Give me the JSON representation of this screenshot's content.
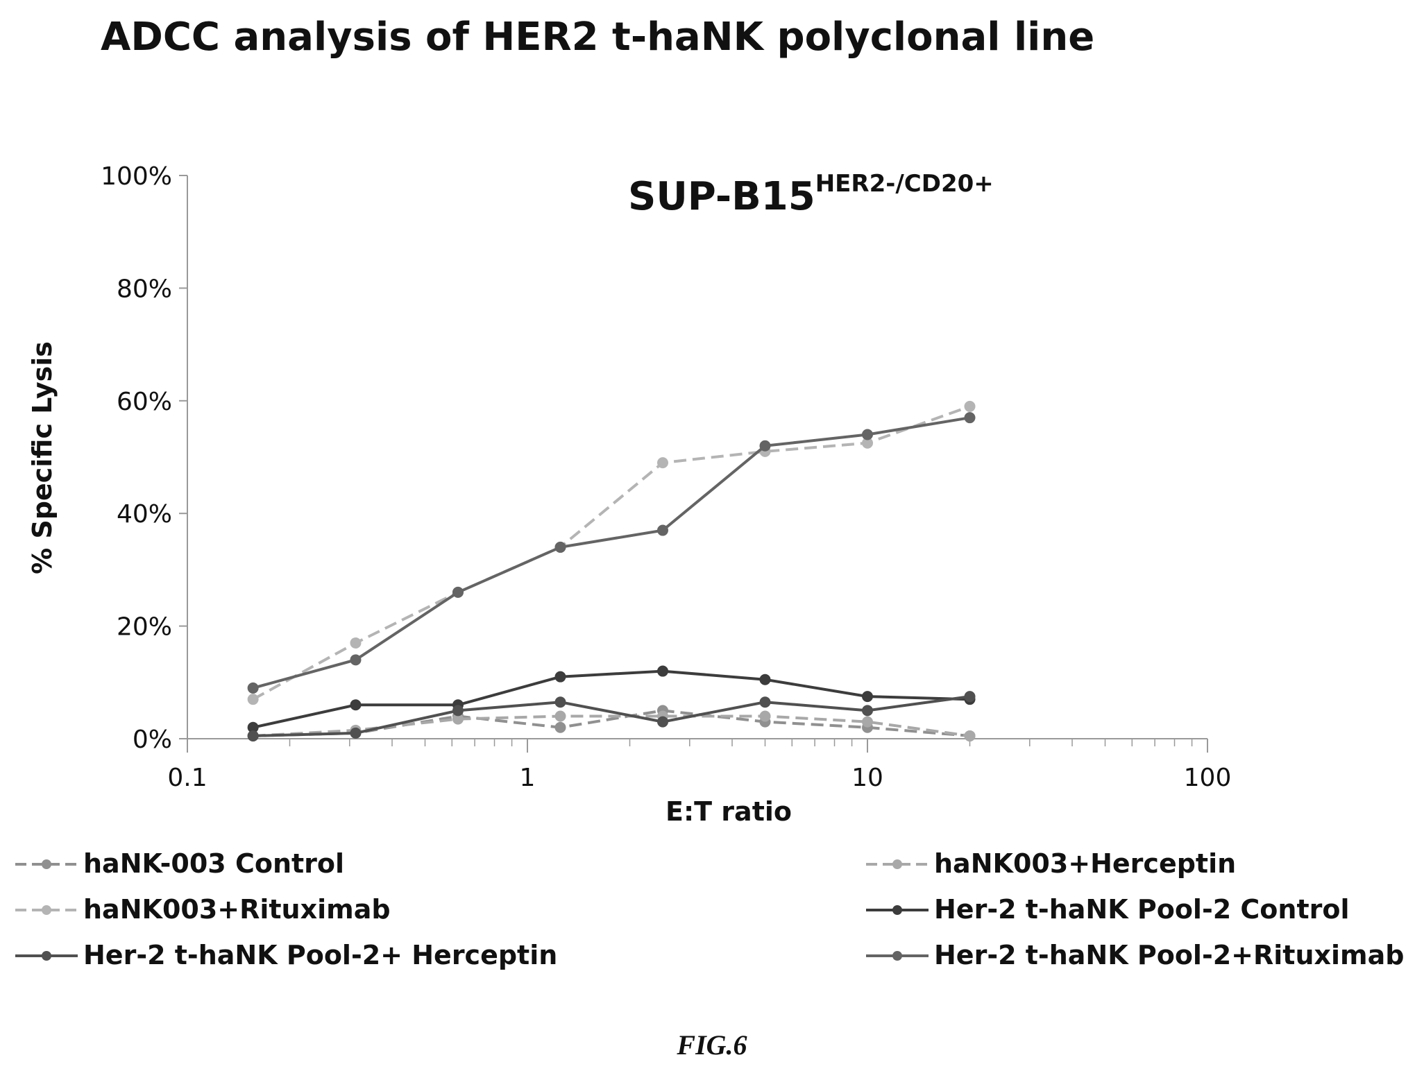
{
  "page": {
    "title": "ADCC analysis of HER2 t-haNK polyclonal line",
    "caption": "FIG.6"
  },
  "chart_data": {
    "type": "line",
    "title": "SUP-B15",
    "title_superscript": "HER2-/CD20+",
    "xlabel": "E:T ratio",
    "ylabel": "% Specific Lysis",
    "x_scale": "log",
    "xlim": [
      0.1,
      100
    ],
    "ylim": [
      0,
      100
    ],
    "x_ticks": [
      {
        "value": 0.1,
        "label": "0.1"
      },
      {
        "value": 1,
        "label": "1"
      },
      {
        "value": 10,
        "label": "10"
      },
      {
        "value": 100,
        "label": "100"
      }
    ],
    "y_ticks": [
      {
        "value": 0,
        "label": "0%"
      },
      {
        "value": 20,
        "label": "20%"
      },
      {
        "value": 40,
        "label": "40%"
      },
      {
        "value": 60,
        "label": "60%"
      },
      {
        "value": 80,
        "label": "80%"
      },
      {
        "value": 100,
        "label": "100%"
      }
    ],
    "grid": false,
    "legend_position": "bottom",
    "x": [
      0.156,
      0.3125,
      0.625,
      1.25,
      2.5,
      5,
      10,
      20
    ],
    "series": [
      {
        "name": "haNK-003 Control",
        "color": "#909090",
        "dashed": true,
        "values": [
          0.5,
          1,
          4,
          2,
          5,
          3,
          2,
          0.5
        ]
      },
      {
        "name": "haNK003+Herceptin",
        "color": "#a8a8a8",
        "dashed": true,
        "values": [
          0.5,
          1.5,
          3.5,
          4,
          4,
          4,
          3,
          0.5
        ]
      },
      {
        "name": "haNK003+Rituximab",
        "color": "#b4b4b4",
        "dashed": true,
        "values": [
          7,
          17,
          26,
          34,
          49,
          51,
          52.5,
          59
        ]
      },
      {
        "name": "Her-2 t-haNK Pool-2 Control",
        "color": "#3c3c3c",
        "dashed": false,
        "values": [
          2,
          6,
          6,
          11,
          12,
          10.5,
          7.5,
          7
        ]
      },
      {
        "name": "Her-2 t-haNK Pool-2+ Herceptin",
        "color": "#505050",
        "dashed": false,
        "values": [
          0.5,
          1,
          5,
          6.5,
          3,
          6.5,
          5,
          7.5
        ]
      },
      {
        "name": "Her-2 t-haNK Pool-2+Rituximab",
        "color": "#646464",
        "dashed": false,
        "values": [
          9,
          14,
          26,
          34,
          37,
          52,
          54,
          57
        ]
      }
    ]
  }
}
